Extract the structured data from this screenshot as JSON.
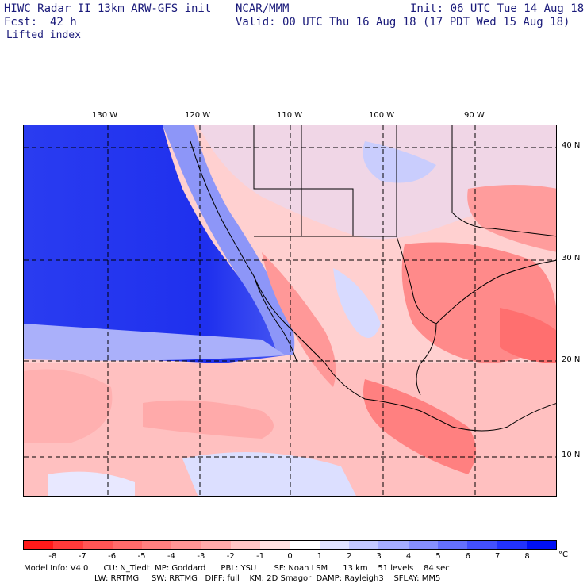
{
  "header": {
    "model": "HIWC Radar II 13km ARW-GFS init",
    "org": "NCAR/MMM",
    "init": "Init: 06 UTC Tue 14 Aug 18",
    "fcst_label": "Fcst:",
    "fcst_value": "42 h",
    "valid": "Valid: 00 UTC Thu 16 Aug 18 (17 PDT Wed 15 Aug 18)",
    "field": "Lifted index"
  },
  "map": {
    "lon_labels": [
      "130 W",
      "120 W",
      "110 W",
      "100 W",
      "90 W"
    ],
    "lat_labels": [
      "40 N",
      "30 N",
      "20 N",
      "10 N"
    ],
    "grid_style": "dashed"
  },
  "colorbar": {
    "ticks": [
      "-8",
      "-7",
      "-6",
      "-5",
      "-4",
      "-3",
      "-2",
      "-1",
      "0",
      "1",
      "2",
      "3",
      "4",
      "5",
      "6",
      "7",
      "8"
    ],
    "unit": "°C",
    "colors": [
      "#ff1a1a",
      "#ff3a3a",
      "#ff5555",
      "#ff6b6b",
      "#ff8080",
      "#ff9595",
      "#ffaaaa",
      "#ffc4c4",
      "#ffe0e0",
      "#ffffff",
      "#dfe2ff",
      "#c3c8ff",
      "#a5acff",
      "#868ffe",
      "#6570fd",
      "#4350fc",
      "#2232fb",
      "#0010f5"
    ]
  },
  "footer": {
    "line1": "Model Info: V4.0      CU: N_Tiedt  MP: Goddard      PBL: YSU       SF: Noah LSM      13 km    51 levels    84 sec",
    "line2": "                            LW: RRTMG     SW: RRTMG   DIFF: full    KM: 2D Smagor  DAMP: Rayleigh3    SFLAY: MM5"
  }
}
